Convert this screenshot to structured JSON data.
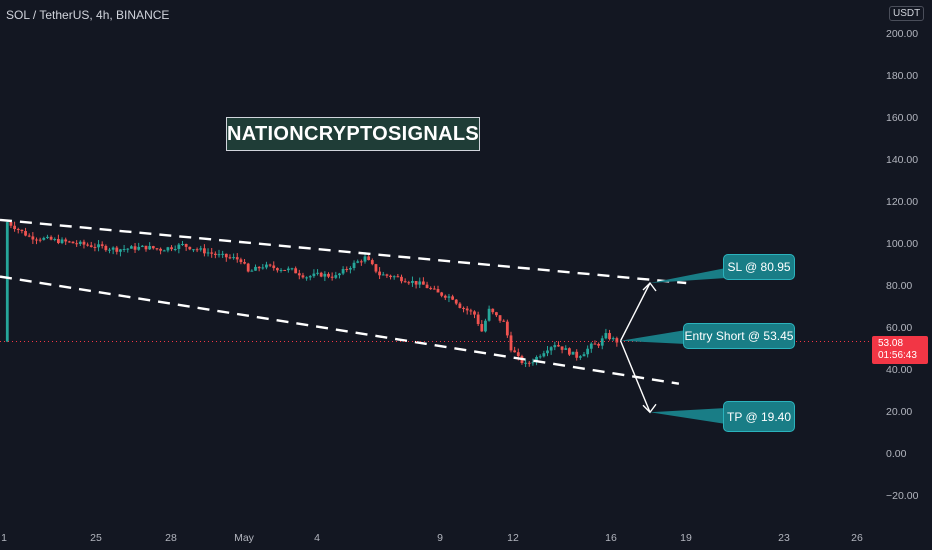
{
  "header": {
    "symbol_title": "SOL / TetherUS, 4h, BINANCE",
    "currency_unit": "USDT"
  },
  "watermark": {
    "text": "NATIONCRYPTOSIGNALS"
  },
  "annotations": {
    "stop_loss": "SL @ 80.95",
    "entry": "Entry Short @ 53.45",
    "take_profit": "TP @ 19.40"
  },
  "price_axis": {
    "ticks": [
      "200.00",
      "180.00",
      "160.00",
      "140.00",
      "120.00",
      "100.00",
      "80.00",
      "60.00",
      "40.00",
      "20.00",
      "0.00",
      "−20.00"
    ]
  },
  "time_axis": {
    "ticks": [
      "1",
      "25",
      "28",
      "May",
      "4",
      "9",
      "12",
      "16",
      "19",
      "23",
      "26"
    ]
  },
  "last_price": {
    "price": "53.08",
    "countdown": "01:56:43"
  },
  "colors": {
    "background": "#131722",
    "bull": "#26a69a",
    "bear": "#ef5350",
    "callout": "#197d86",
    "watermark_bg": "#1f3d37",
    "price_tag": "#f23645"
  },
  "chart_data": {
    "type": "candlestick",
    "symbol": "SOL/USDT",
    "timeframe": "4h",
    "exchange": "BINANCE",
    "ylim": [
      -20,
      200
    ],
    "close_path": [
      [
        1,
        110
      ],
      [
        4,
        103
      ],
      [
        8,
        101
      ],
      [
        12,
        99
      ],
      [
        16,
        97
      ],
      [
        20,
        98
      ],
      [
        22,
        97
      ],
      [
        25,
        99
      ],
      [
        28,
        96
      ],
      [
        30,
        94
      ],
      [
        33,
        92
      ],
      [
        34,
        86
      ],
      [
        36,
        89
      ],
      [
        38,
        88
      ],
      [
        40,
        87
      ],
      [
        42,
        84
      ],
      [
        44,
        85
      ],
      [
        46,
        84
      ],
      [
        48,
        89
      ],
      [
        50,
        93
      ],
      [
        52,
        85
      ],
      [
        54,
        84
      ],
      [
        56,
        82
      ],
      [
        58,
        80
      ],
      [
        60,
        76
      ],
      [
        62,
        74
      ],
      [
        63,
        70
      ],
      [
        65,
        66
      ],
      [
        66,
        58
      ],
      [
        67,
        68
      ],
      [
        69,
        62
      ],
      [
        70,
        50
      ],
      [
        71,
        45
      ],
      [
        72,
        42
      ],
      [
        73,
        44
      ],
      [
        74,
        47
      ],
      [
        75,
        50
      ],
      [
        76,
        52
      ],
      [
        77,
        50
      ],
      [
        78,
        48
      ],
      [
        79,
        46
      ],
      [
        80,
        48
      ],
      [
        81,
        51
      ],
      [
        82,
        52
      ],
      [
        83,
        56
      ],
      [
        84,
        54
      ],
      [
        84.6,
        53.08
      ]
    ],
    "trendlines": [
      {
        "name": "upper",
        "points": [
          [
            0,
            111
          ],
          [
            94,
            80.95
          ]
        ]
      },
      {
        "name": "lower",
        "points": [
          [
            0,
            84
          ],
          [
            93,
            33
          ]
        ]
      }
    ],
    "targets": {
      "entry": 53.45,
      "stop_loss": 80.95,
      "take_profit": 19.4
    }
  }
}
